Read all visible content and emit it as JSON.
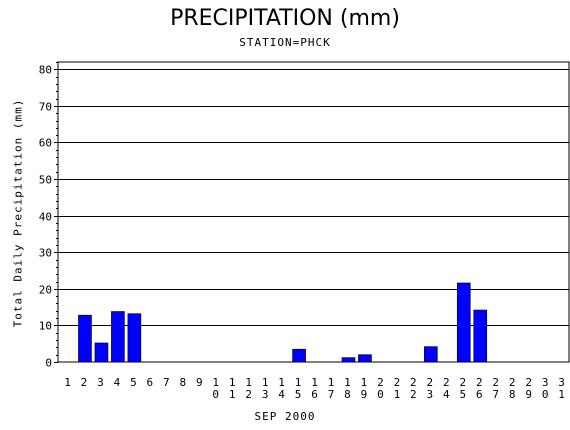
{
  "chart_data": {
    "type": "bar",
    "title": "PRECIPITATION (mm)",
    "subtitle": "STATION=PHCK",
    "xlabel": "SEP 2000",
    "ylabel": "Total Daily Precipitation (mm)",
    "categories": [
      "1",
      "2",
      "3",
      "4",
      "5",
      "6",
      "7",
      "8",
      "9",
      "10",
      "11",
      "12",
      "13",
      "14",
      "15",
      "16",
      "17",
      "18",
      "19",
      "20",
      "21",
      "22",
      "23",
      "24",
      "25",
      "26",
      "27",
      "28",
      "29",
      "30",
      "31"
    ],
    "values": [
      0,
      12.8,
      5.2,
      13.8,
      13.2,
      0,
      0,
      0,
      0,
      0,
      0,
      0,
      0,
      0,
      3.5,
      0,
      0,
      1.2,
      2.0,
      0,
      0,
      0,
      4.2,
      0,
      21.6,
      14.2,
      0,
      0,
      0,
      0,
      0
    ],
    "ylim": [
      0,
      82
    ],
    "yticks": [
      0,
      10,
      20,
      30,
      40,
      50,
      60,
      70,
      80
    ],
    "grid": true,
    "bar_color": "#0000ff",
    "axis_color": "#000000"
  }
}
